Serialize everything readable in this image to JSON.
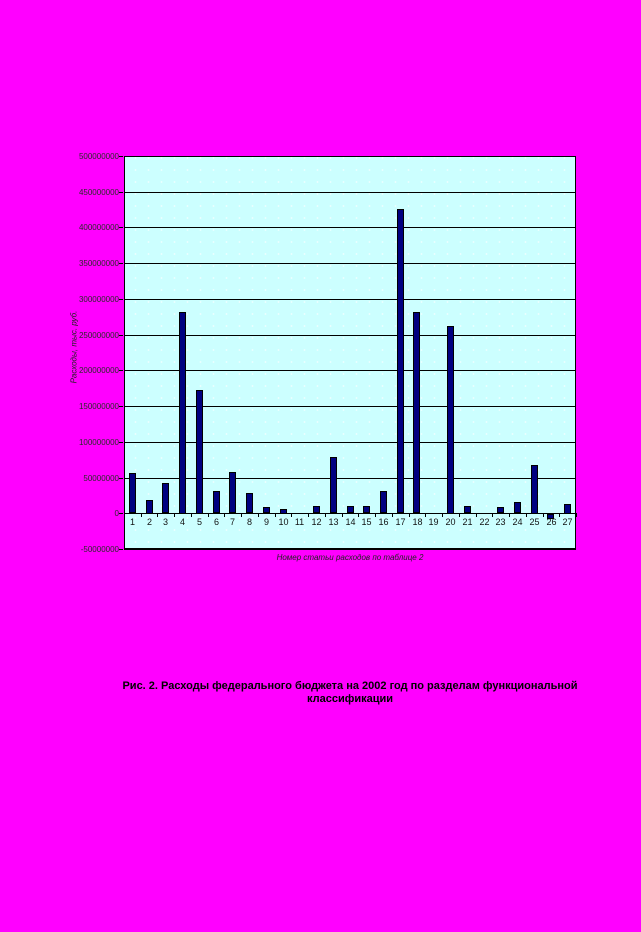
{
  "page": {
    "background_color": "#FF00FF"
  },
  "chart_data": {
    "type": "bar",
    "title": "",
    "categories": [
      "1",
      "2",
      "3",
      "4",
      "5",
      "6",
      "7",
      "8",
      "9",
      "10",
      "11",
      "12",
      "13",
      "14",
      "15",
      "16",
      "17",
      "18",
      "19",
      "20",
      "21",
      "22",
      "23",
      "24",
      "25",
      "26",
      "27"
    ],
    "values": [
      56300000,
      19100000,
      42300000,
      282000000,
      173000000,
      30700000,
      57700000,
      28400000,
      8800000,
      6500000,
      300000,
      9800000,
      78500000,
      9800000,
      9800000,
      30700000,
      425500000,
      281000000,
      300000,
      262500000,
      9800000,
      300000,
      8800000,
      15800000,
      68000000,
      -7000000,
      13500000
    ],
    "xlabel": "Номер статьи расходов по таблице 2",
    "ylabel": "Расходы, тыс. руб.",
    "ylim": [
      -50000000,
      500000000
    ],
    "ytick_step": 50000000,
    "ytick_labels": [
      "500000000",
      "450000000",
      "400000000",
      "350000000",
      "300000000",
      "250000000",
      "200000000",
      "150000000",
      "100000000",
      "50000000",
      "0",
      "-50000000"
    ],
    "grid": true,
    "legend": false,
    "plot_bg_color": "#CCFFFF",
    "bar_color": "#000080",
    "bar_border_color": "#000000",
    "gridline_color": "#000000",
    "axis_color": "#000000"
  },
  "caption": {
    "line1": "Рис. 2. Расходы федерального бюджета на 2002 год по разделам функциональной",
    "line2": "классификации"
  }
}
